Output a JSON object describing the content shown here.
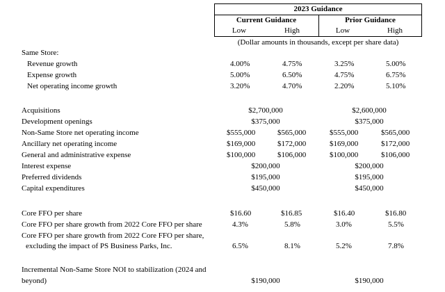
{
  "header": {
    "year_title": "2023 Guidance",
    "current": "Current Guidance",
    "prior": "Prior Guidance",
    "low": "Low",
    "high": "High",
    "note": "(Dollar amounts in thousands, except per share data)"
  },
  "same_store": {
    "title": "Same Store:",
    "rows": [
      {
        "label": "Revenue growth",
        "cur_low": "4.00%",
        "cur_high": "4.75%",
        "pri_low": "3.25%",
        "pri_high": "5.00%"
      },
      {
        "label": "Expense growth",
        "cur_low": "5.00%",
        "cur_high": "6.50%",
        "pri_low": "4.75%",
        "pri_high": "6.75%"
      },
      {
        "label": "Net operating income growth",
        "cur_low": "3.20%",
        "cur_high": "4.70%",
        "pri_low": "2.20%",
        "pri_high": "5.10%"
      }
    ]
  },
  "other": {
    "rows": [
      {
        "label": "Acquisitions",
        "cur_mid": "$2,700,000",
        "pri_mid": "$2,600,000"
      },
      {
        "label": "Development openings",
        "cur_mid": "$375,000",
        "pri_mid": "$375,000"
      },
      {
        "label": "Non-Same Store net operating income",
        "cur_low": "$555,000",
        "cur_high": "$565,000",
        "pri_low": "$555,000",
        "pri_high": "$565,000"
      },
      {
        "label": "Ancillary net operating income",
        "cur_low": "$169,000",
        "cur_high": "$172,000",
        "pri_low": "$169,000",
        "pri_high": "$172,000"
      },
      {
        "label": "General and administrative expense",
        "cur_low": "$100,000",
        "cur_high": "$106,000",
        "pri_low": "$100,000",
        "pri_high": "$106,000"
      },
      {
        "label": "Interest expense",
        "cur_mid": "$200,000",
        "pri_mid": "$200,000"
      },
      {
        "label": "Preferred dividends",
        "cur_mid": "$195,000",
        "pri_mid": "$195,000"
      },
      {
        "label": "Capital expenditures",
        "cur_mid": "$450,000",
        "pri_mid": "$450,000"
      }
    ]
  },
  "ffo": {
    "row1": {
      "label": "Core FFO per share",
      "cur_low": "$16.60",
      "cur_high": "$16.85",
      "pri_low": "$16.40",
      "pri_high": "$16.80"
    },
    "row2": {
      "label": "Core FFO per share growth from 2022 Core FFO per share",
      "cur_low": "4.3%",
      "cur_high": "5.8%",
      "pri_low": "3.0%",
      "pri_high": "5.5%"
    },
    "row3": {
      "label_line1": "Core FFO per share growth from 2022 Core FFO per share,",
      "label_line2": "excluding the impact of PS Business Parks, Inc.",
      "cur_low": "6.5%",
      "cur_high": "8.1%",
      "pri_low": "5.2%",
      "pri_high": "7.8%"
    }
  },
  "incremental": {
    "label_line1": "Incremental Non-Same Store NOI to stabilization (2024 and",
    "label_line2": "beyond)",
    "cur_mid": "$190,000",
    "pri_mid": "$190,000"
  }
}
